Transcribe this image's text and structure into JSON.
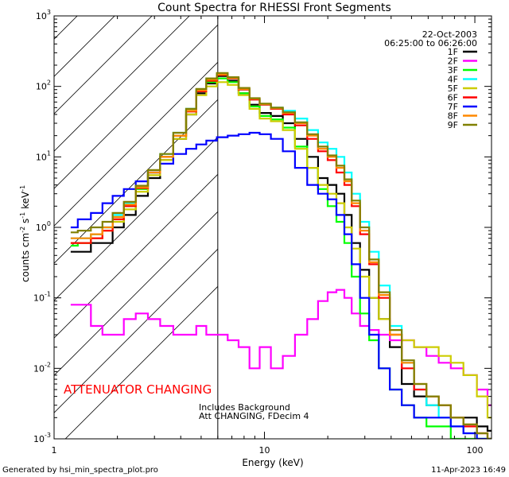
{
  "chart_data": {
    "type": "line",
    "scale": {
      "x": "log",
      "y": "log"
    },
    "title": "Count Spectra for RHESSI Front Segments",
    "xlabel": "Energy (keV)",
    "ylabel_main": "counts cm",
    "ylabel_exp1": "-2",
    "ylabel_mid": " s",
    "ylabel_exp2": "-1",
    "ylabel_mid2": " keV",
    "ylabel_exp3": "-1",
    "xlim": [
      1,
      120
    ],
    "ylim": [
      0.001,
      1000
    ],
    "x_ticks": [
      {
        "value": 1,
        "label": "1"
      },
      {
        "value": 10,
        "label": "10"
      },
      {
        "value": 100,
        "label": "100"
      }
    ],
    "y_ticks": [
      {
        "value": 0.001,
        "base": "10",
        "exp": "-3"
      },
      {
        "value": 0.01,
        "base": "10",
        "exp": "-2"
      },
      {
        "value": 0.1,
        "base": "10",
        "exp": "-1"
      },
      {
        "value": 1,
        "base": "10",
        "exp": "0"
      },
      {
        "value": 10,
        "base": "10",
        "exp": "1"
      },
      {
        "value": 100,
        "base": "10",
        "exp": "2"
      },
      {
        "value": 1000,
        "base": "10",
        "exp": "3"
      }
    ],
    "date": "22-Oct-2003",
    "time_range": "06:25:00 to 06:26:00",
    "attenuator_text": "ATTENUATOR CHANGING",
    "attenuator_color": "#ff0000",
    "attenuator_energy_keV": 6,
    "note1": "Includes Background",
    "note2": "Att CHANGING, FDecim 4",
    "footer_left": "Generated by hsi_min_spectra_plot.pro",
    "footer_right": "11-Apr-2023 16:49",
    "x": [
      1.2,
      1.4,
      1.6,
      1.8,
      2.0,
      2.3,
      2.6,
      3.0,
      3.4,
      4.0,
      4.5,
      5.0,
      5.6,
      6.3,
      7.1,
      8.0,
      9.0,
      10,
      11.5,
      13,
      15,
      17,
      19,
      21,
      23,
      25,
      27,
      30,
      33,
      37,
      42,
      48,
      55,
      63,
      72,
      82,
      95,
      110,
      120
    ],
    "series": [
      {
        "name": "1F",
        "color": "#000000",
        "values": [
          0.45,
          0.45,
          0.6,
          0.6,
          1.0,
          1.5,
          2.8,
          5,
          9,
          18,
          40,
          80,
          110,
          140,
          120,
          80,
          55,
          42,
          38,
          30,
          18,
          10,
          5,
          4,
          3,
          1.5,
          0.6,
          0.25,
          0.1,
          0.05,
          0.02,
          0.006,
          0.004,
          0.003,
          0.003,
          0.002,
          0.002,
          0.0015,
          0.0013
        ]
      },
      {
        "name": "2F",
        "color": "#ff00ff",
        "values": [
          0.08,
          0.08,
          0.04,
          0.03,
          0.03,
          0.05,
          0.06,
          0.05,
          0.04,
          0.03,
          0.03,
          0.04,
          0.03,
          0.03,
          0.025,
          0.02,
          0.01,
          0.02,
          0.01,
          0.015,
          0.03,
          0.05,
          0.09,
          0.12,
          0.13,
          0.1,
          0.06,
          0.04,
          0.035,
          0.03,
          0.025,
          0.025,
          0.02,
          0.015,
          0.012,
          0.01,
          0.008,
          0.005,
          0.003
        ]
      },
      {
        "name": "3F",
        "color": "#00ff00",
        "values": [
          0.55,
          0.6,
          0.8,
          1.0,
          1.4,
          2.0,
          3.5,
          6,
          10,
          20,
          45,
          85,
          115,
          130,
          115,
          80,
          52,
          38,
          34,
          26,
          14,
          7,
          3.5,
          2,
          1.2,
          0.6,
          0.2,
          0.06,
          0.025,
          0.01,
          0.005,
          0.003,
          0.002,
          0.0015,
          0.0015,
          0.001,
          0.001,
          0.001,
          0.001
        ]
      },
      {
        "name": "4F",
        "color": "#00ffff",
        "values": [
          0.7,
          0.7,
          0.8,
          1.0,
          1.5,
          2.2,
          3.8,
          6,
          11,
          22,
          48,
          90,
          130,
          150,
          130,
          90,
          65,
          55,
          50,
          45,
          35,
          24,
          16,
          13,
          10,
          6,
          3,
          1.2,
          0.45,
          0.15,
          0.04,
          0.012,
          0.005,
          0.003,
          0.002,
          0.0015,
          0.0012,
          0.001,
          0.001
        ]
      },
      {
        "name": "5F",
        "color": "#cccc00",
        "values": [
          0.6,
          0.6,
          0.7,
          0.9,
          1.2,
          1.8,
          3.2,
          5.5,
          9,
          18,
          40,
          75,
          100,
          115,
          105,
          75,
          48,
          35,
          32,
          24,
          13,
          7,
          4,
          3,
          2.2,
          1.0,
          0.5,
          0.2,
          0.1,
          0.05,
          0.03,
          0.025,
          0.02,
          0.02,
          0.015,
          0.012,
          0.008,
          0.004,
          0.002
        ]
      },
      {
        "name": "6F",
        "color": "#ff0000",
        "values": [
          0.6,
          0.6,
          0.7,
          0.9,
          1.3,
          2.0,
          3.6,
          6,
          10,
          20,
          44,
          85,
          120,
          145,
          130,
          90,
          65,
          55,
          48,
          40,
          28,
          18,
          12,
          9,
          6,
          4,
          2,
          0.8,
          0.3,
          0.1,
          0.03,
          0.01,
          0.005,
          0.004,
          0.003,
          0.002,
          0.0015,
          0.0012,
          0.001
        ]
      },
      {
        "name": "7F",
        "color": "#0000ff",
        "values": [
          1.0,
          1.3,
          1.6,
          2.2,
          2.8,
          3.5,
          4.5,
          6,
          8,
          11,
          13,
          15,
          17,
          19,
          20,
          21,
          22,
          21,
          18,
          12,
          7,
          4,
          3,
          2.5,
          1.5,
          0.8,
          0.3,
          0.1,
          0.03,
          0.01,
          0.005,
          0.003,
          0.002,
          0.002,
          0.002,
          0.0015,
          0.0012,
          0.001,
          0.001
        ]
      },
      {
        "name": "8F",
        "color": "#ff8800",
        "values": [
          0.7,
          0.7,
          0.8,
          1.0,
          1.4,
          2.1,
          3.7,
          6,
          10,
          20,
          45,
          88,
          125,
          148,
          132,
          92,
          67,
          56,
          49,
          42,
          30,
          20,
          13,
          10,
          7,
          4.5,
          2.2,
          0.9,
          0.32,
          0.11,
          0.03,
          0.012,
          0.006,
          0.004,
          0.003,
          0.002,
          0.0016,
          0.0012,
          0.001
        ]
      },
      {
        "name": "9F",
        "color": "#808000",
        "values": [
          0.85,
          0.9,
          1.0,
          1.2,
          1.6,
          2.3,
          3.9,
          6.5,
          11,
          22,
          48,
          92,
          130,
          155,
          135,
          95,
          68,
          57,
          50,
          43,
          31,
          21,
          14,
          10.5,
          7.5,
          4.8,
          2.4,
          1.0,
          0.35,
          0.12,
          0.035,
          0.013,
          0.006,
          0.004,
          0.003,
          0.002,
          0.0016,
          0.0012,
          0.001
        ]
      }
    ]
  }
}
